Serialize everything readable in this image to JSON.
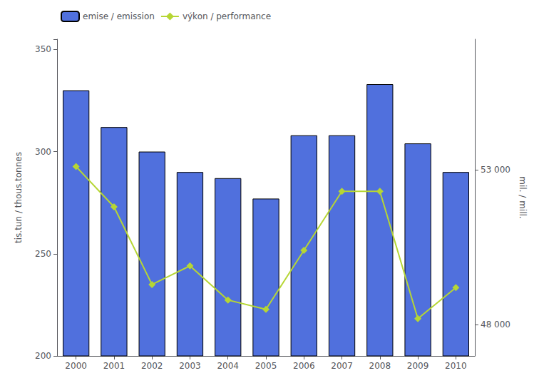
{
  "chart_data": {
    "type": "bar",
    "categories": [
      "2000",
      "2001",
      "2002",
      "2003",
      "2004",
      "2005",
      "2006",
      "2007",
      "2008",
      "2009",
      "2010"
    ],
    "series": [
      {
        "name": "emise / emission",
        "type": "bar",
        "values": [
          330,
          312,
          300,
          290,
          287,
          277,
          308,
          308,
          333,
          304,
          290
        ]
      },
      {
        "name": "výkon / performance",
        "type": "line",
        "axis": "y2",
        "marker": "diamond",
        "values": [
          53100,
          51800,
          49300,
          49900,
          48800,
          48500,
          50400,
          52300,
          52300,
          48200,
          49200
        ]
      }
    ],
    "ylabel": "tis.tun / thous.tonnes",
    "y2label": "mil. / mill.",
    "ylim": [
      200,
      355
    ],
    "yticks": [
      200,
      250,
      300,
      350
    ],
    "y2lim": [
      47000,
      57200
    ],
    "y2ticks": [
      {
        "value": 48000,
        "label": "48 000"
      },
      {
        "value": 53000,
        "label": "53 000"
      }
    ],
    "grid": false,
    "legend": "upper left"
  }
}
